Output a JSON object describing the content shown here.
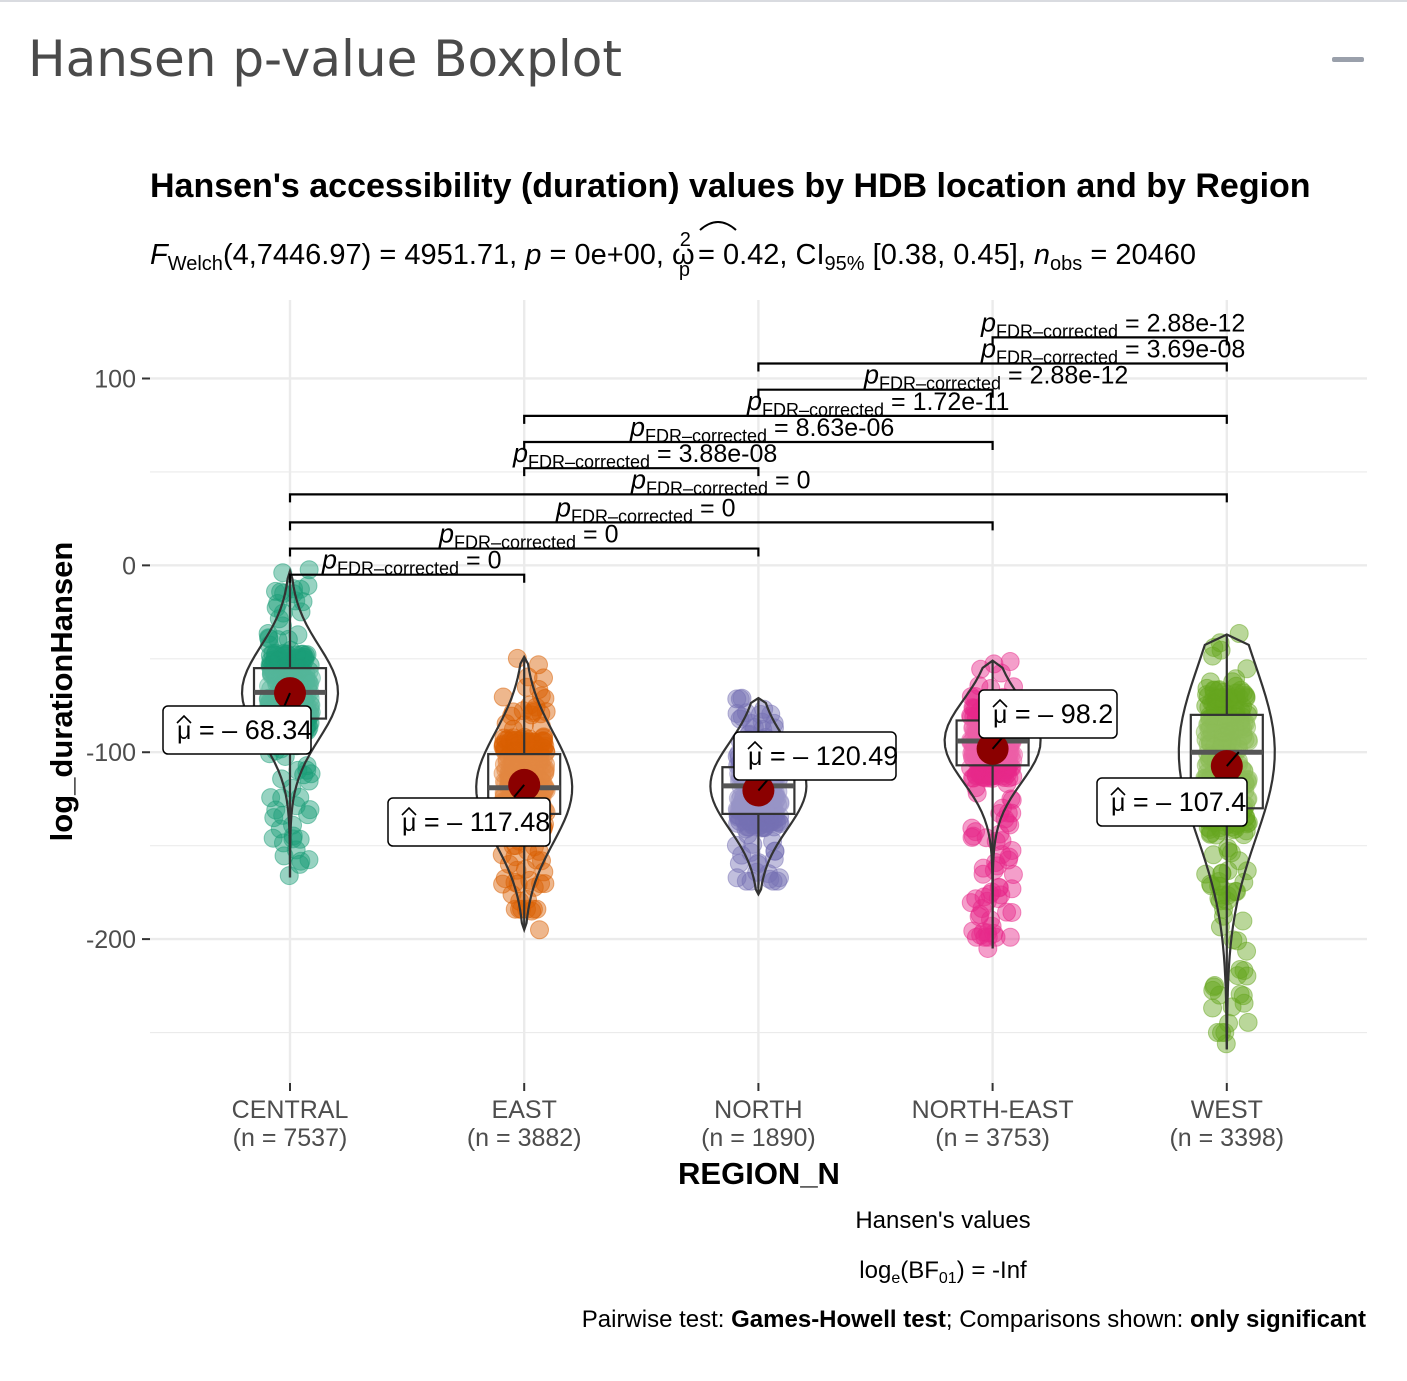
{
  "panel": {
    "title": "Hansen p-value Boxplot",
    "collapse_icon": "minus-icon"
  },
  "chart_data": {
    "type": "boxplot",
    "title": "Hansen's accessibility (duration) values by HDB location and by Region",
    "subtitle": {
      "stat": "F",
      "stat_sub": "Welch",
      "df": "(4,7446.97) = 4951.71, ",
      "p": "p",
      "p_val": " = 0e+00, ",
      "omega": "ω",
      "omega_sup": "2",
      "omega_sub": "p",
      "es_val": " = 0.42, CI",
      "ci_sub": "95%",
      "ci_val": " [0.38, 0.45], ",
      "n": "n",
      "n_sub": "obs",
      "n_val": " = 20460"
    },
    "xlabel": "REGION_N",
    "ylabel": "log_durationHansen",
    "ylim": [
      -277,
      142
    ],
    "yticks": [
      100,
      0,
      -100,
      -200
    ],
    "ytick_labels": [
      "100",
      "0",
      "-100",
      "-200"
    ],
    "grid": true,
    "groups": [
      {
        "name": "CENTRAL",
        "n_label": "(n = 7537)",
        "color": "#1b9e77",
        "mean": -68.34,
        "mean_label": "= – 68.34",
        "median": -68,
        "q1": -82,
        "q3": -55,
        "min": -167,
        "max": -3,
        "pmin": -166,
        "pmax": -1,
        "outliers": [
          -166,
          -146,
          -141,
          -135
        ]
      },
      {
        "name": "EAST",
        "n_label": "(n = 3882)",
        "color": "#d95f02",
        "mean": -117.48,
        "mean_label": "= – 117.48",
        "median": -119,
        "q1": -133,
        "q3": -101,
        "min": -195,
        "max": -49,
        "pmin": -190,
        "pmax": -49,
        "outliers": [
          -195,
          -185
        ]
      },
      {
        "name": "NORTH",
        "n_label": "(n = 1890)",
        "color": "#7570b3",
        "mean": -120.49,
        "mean_label": "= – 120.49",
        "median": -118,
        "q1": -133,
        "q3": -108,
        "min": -176,
        "max": -71,
        "pmin": -175,
        "pmax": -71,
        "outliers": []
      },
      {
        "name": "NORTH-EAST",
        "n_label": "(n = 3753)",
        "color": "#e7298a",
        "mean": -98.2,
        "mean_label": "= – 98.2",
        "median": -94,
        "q1": -107,
        "q3": -83,
        "min": -205,
        "max": -51,
        "pmin": -205,
        "pmax": -51,
        "outliers": [
          -205,
          -197,
          -188,
          -176
        ]
      },
      {
        "name": "WEST",
        "n_label": "(n = 3398)",
        "color": "#66a61e",
        "mean": -107.4,
        "mean_label": "= – 107.4",
        "median": -100,
        "q1": -130,
        "q3": -80,
        "min": -259,
        "max": -37,
        "pmin": -256,
        "pmax": -36,
        "outliers": [
          -256,
          -245,
          -230
        ]
      }
    ],
    "comparisons": [
      {
        "from": 0,
        "to": 1,
        "y": -5,
        "p_val": "0"
      },
      {
        "from": 0,
        "to": 2,
        "y": 9,
        "p_val": "0"
      },
      {
        "from": 0,
        "to": 3,
        "y": 23,
        "p_val": "0"
      },
      {
        "from": 0,
        "to": 4,
        "y": 38,
        "p_val": "0"
      },
      {
        "from": 1,
        "to": 2,
        "y": 52,
        "p_val": "3.88e-08"
      },
      {
        "from": 1,
        "to": 3,
        "y": 66,
        "p_val": "8.63e-06"
      },
      {
        "from": 1,
        "to": 4,
        "y": 80,
        "p_val": "1.72e-11"
      },
      {
        "from": 2,
        "to": 3,
        "y": 94,
        "p_val": "2.88e-12"
      },
      {
        "from": 2,
        "to": 4,
        "y": 108,
        "p_val": "3.69e-08"
      },
      {
        "from": 3,
        "to": 4,
        "y": 122,
        "p_val": "2.88e-12"
      }
    ],
    "comparison_label_p": "p",
    "comparison_label_sub": "FDR–corrected",
    "comparison_label_eq": " = ",
    "mean_label_symbol": "μ",
    "caption": {
      "line1": "Hansen's values",
      "line2_pre": "log",
      "line2_sub_e": "e",
      "line2_mid": "(BF",
      "line2_sub_01": "01",
      "line2_post": ") = -Inf",
      "line3_pre": "Pairwise test: ",
      "line3_b1": "Games-Howell test",
      "line3_mid": "; Comparisons shown: ",
      "line3_b2": "only significant"
    },
    "mean_point_color": "#8b0000"
  }
}
